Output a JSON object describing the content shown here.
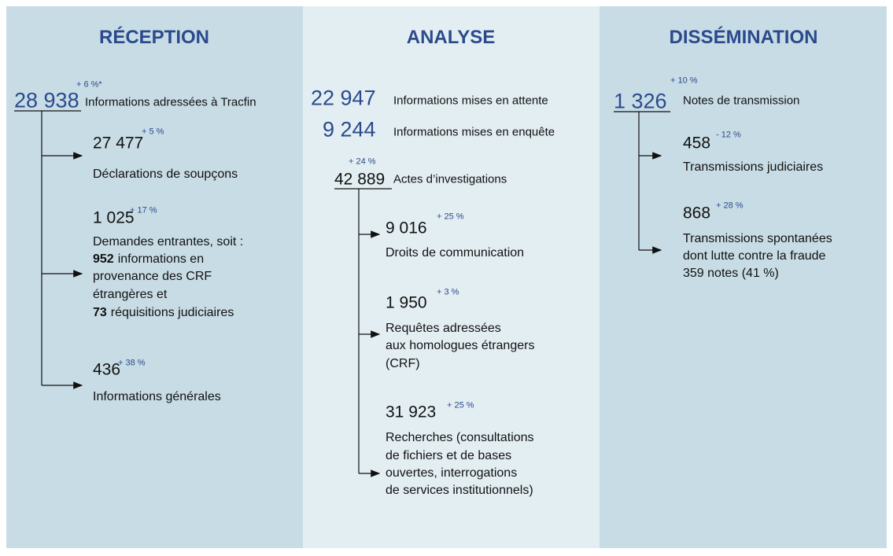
{
  "columns": [
    {
      "title": "RÉCEPTION",
      "heads": [
        {
          "number": "28 938",
          "change": "+ 6 %*",
          "label": "Informations adressées à Tracfin"
        }
      ],
      "items": [
        {
          "number": "27 477",
          "change": "+ 5 %",
          "lines": [
            "Déclarations de soupçons"
          ]
        },
        {
          "number": "1 025",
          "change": "+ 17 %",
          "lines": [
            "Demandes entrantes, soit :",
            {
              "bold": "952",
              "text": "informations en"
            },
            "provenance des CRF",
            "étrangères et",
            {
              "bold": "73",
              "text": "réquisitions judiciaires"
            }
          ]
        },
        {
          "number": "436",
          "change": "+ 38 %",
          "lines": [
            "Informations générales"
          ]
        }
      ]
    },
    {
      "title": "ANALYSE",
      "heads": [
        {
          "number": "22 947",
          "label": "Informations mises en attente"
        },
        {
          "number": "9 244",
          "label": "Informations mises en enquête"
        },
        {
          "number": "42 889",
          "change": "+ 24 %",
          "label": "Actes d’investigations"
        }
      ],
      "items": [
        {
          "number": "9 016",
          "change": "+ 25 %",
          "lines": [
            "Droits de communication"
          ]
        },
        {
          "number": "1 950",
          "change": "+ 3 %",
          "lines": [
            "Requêtes adressées",
            "aux homologues étrangers",
            "(CRF)"
          ]
        },
        {
          "number": "31 923",
          "change": "+ 25 %",
          "lines": [
            "Recherches (consultations",
            "de fichiers et de bases",
            "ouvertes, interrogations",
            "de services institutionnels)"
          ]
        }
      ]
    },
    {
      "title": "DISSÉMINATION",
      "heads": [
        {
          "number": "1 326",
          "change": "+ 10 %",
          "label": "Notes de transmission"
        }
      ],
      "items": [
        {
          "number": "458",
          "change": "- 12 %",
          "lines": [
            "Transmissions judiciaires"
          ]
        },
        {
          "number": "868",
          "change": "+ 28 %",
          "lines": [
            "Transmissions spontanées",
            "dont lutte contre la fraude",
            "359 notes (41 %)"
          ]
        }
      ]
    }
  ]
}
